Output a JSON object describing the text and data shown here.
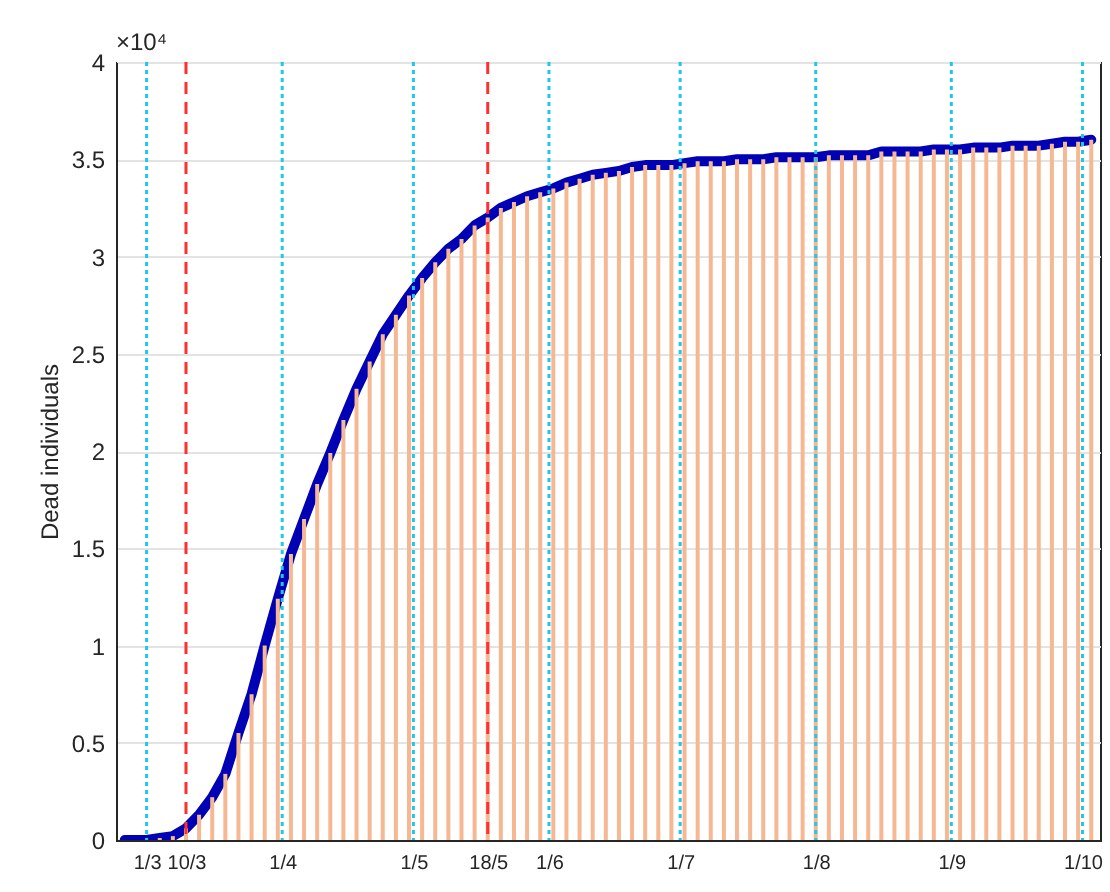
{
  "chart_data": {
    "type": "bar",
    "ylabel": "Dead individuals",
    "annotations": [
      "×10⁴"
    ],
    "x": [
      "--02-24",
      "--02-27",
      "--03-01",
      "--03-04",
      "--03-07",
      "--03-10",
      "--03-13",
      "--03-16",
      "--03-19",
      "--03-22",
      "--03-25",
      "--03-28",
      "--03-31",
      "--04-03",
      "--04-06",
      "--04-09",
      "--04-12",
      "--04-15",
      "--04-18",
      "--04-21",
      "--04-24",
      "--04-27",
      "--04-30",
      "--05-03",
      "--05-06",
      "--05-09",
      "--05-12",
      "--05-15",
      "--05-18",
      "--05-21",
      "--05-24",
      "--05-27",
      "--05-30",
      "--06-02",
      "--06-05",
      "--06-08",
      "--06-11",
      "--06-14",
      "--06-17",
      "--06-20",
      "--06-23",
      "--06-26",
      "--06-29",
      "--07-02",
      "--07-05",
      "--07-08",
      "--07-11",
      "--07-14",
      "--07-17",
      "--07-20",
      "--07-23",
      "--07-26",
      "--07-29",
      "--08-01",
      "--08-04",
      "--08-07",
      "--08-10",
      "--08-13",
      "--08-16",
      "--08-19",
      "--08-22",
      "--08-25",
      "--08-28",
      "--08-31",
      "--09-03",
      "--09-06",
      "--09-09",
      "--09-12",
      "--09-15",
      "--09-18",
      "--09-21",
      "--09-24",
      "--09-27",
      "--09-30",
      "--10-03"
    ],
    "series": [
      {
        "color": "#f6b893",
        "values": [
          0.0,
          0.0,
          0.0,
          0.01,
          0.02,
          0.06,
          0.13,
          0.22,
          0.34,
          0.55,
          0.75,
          1.0,
          1.24,
          1.47,
          1.65,
          1.83,
          1.99,
          2.16,
          2.32,
          2.46,
          2.6,
          2.7,
          2.8,
          2.89,
          2.97,
          3.04,
          3.09,
          3.16,
          3.2,
          3.25,
          3.28,
          3.31,
          3.33,
          3.35,
          3.38,
          3.4,
          3.42,
          3.43,
          3.44,
          3.46,
          3.47,
          3.47,
          3.47,
          3.48,
          3.49,
          3.49,
          3.49,
          3.5,
          3.5,
          3.5,
          3.51,
          3.51,
          3.51,
          3.51,
          3.52,
          3.52,
          3.52,
          3.52,
          3.54,
          3.54,
          3.54,
          3.54,
          3.55,
          3.55,
          3.55,
          3.56,
          3.56,
          3.56,
          3.57,
          3.57,
          3.57,
          3.58,
          3.59,
          3.59,
          3.6
        ]
      },
      {
        "type": "line",
        "color": "#0000b4",
        "values": [
          0.0,
          0.0,
          0.0,
          0.01,
          0.02,
          0.06,
          0.13,
          0.22,
          0.34,
          0.55,
          0.75,
          1.0,
          1.24,
          1.47,
          1.65,
          1.83,
          1.99,
          2.16,
          2.32,
          2.46,
          2.6,
          2.7,
          2.8,
          2.89,
          2.97,
          3.04,
          3.09,
          3.16,
          3.2,
          3.25,
          3.28,
          3.31,
          3.33,
          3.35,
          3.38,
          3.4,
          3.42,
          3.43,
          3.44,
          3.46,
          3.47,
          3.47,
          3.47,
          3.48,
          3.49,
          3.49,
          3.49,
          3.5,
          3.5,
          3.5,
          3.51,
          3.51,
          3.51,
          3.51,
          3.52,
          3.52,
          3.52,
          3.52,
          3.54,
          3.54,
          3.54,
          3.54,
          3.55,
          3.55,
          3.55,
          3.56,
          3.56,
          3.56,
          3.57,
          3.57,
          3.57,
          3.58,
          3.59,
          3.59,
          3.6
        ]
      }
    ],
    "xlim": [
      "--02-22",
      "--10-05"
    ],
    "xticks": [
      {
        "value": "--03-01",
        "label": "1/3"
      },
      {
        "value": "--03-10",
        "label": "10/3"
      },
      {
        "value": "--04-01",
        "label": "1/4"
      },
      {
        "value": "--05-01",
        "label": "1/5"
      },
      {
        "value": "--05-18",
        "label": "18/5"
      },
      {
        "value": "--06-01",
        "label": "1/6"
      },
      {
        "value": "--07-01",
        "label": "1/7"
      },
      {
        "value": "--08-01",
        "label": "1/8"
      },
      {
        "value": "--09-01",
        "label": "1/9"
      },
      {
        "value": "--10-01",
        "label": "1/10"
      }
    ],
    "ylim": [
      0,
      4
    ],
    "yticks": [
      0,
      0.5,
      1,
      1.5,
      2,
      2.5,
      3,
      3.5,
      4
    ],
    "ref_lines": [
      {
        "axis": "x",
        "value": "--03-01",
        "color": "#1ec8e6",
        "line_style": "dotted"
      },
      {
        "axis": "x",
        "value": "--04-01",
        "color": "#1ec8e6",
        "line_style": "dotted"
      },
      {
        "axis": "x",
        "value": "--05-01",
        "color": "#1ec8e6",
        "line_style": "dotted"
      },
      {
        "axis": "x",
        "value": "--06-01",
        "color": "#1ec8e6",
        "line_style": "dotted"
      },
      {
        "axis": "x",
        "value": "--07-01",
        "color": "#1ec8e6",
        "line_style": "dotted"
      },
      {
        "axis": "x",
        "value": "--08-01",
        "color": "#1ec8e6",
        "line_style": "dotted"
      },
      {
        "axis": "x",
        "value": "--09-01",
        "color": "#1ec8e6",
        "line_style": "dotted"
      },
      {
        "axis": "x",
        "value": "--10-01",
        "color": "#1ec8e6",
        "line_style": "dotted"
      },
      {
        "axis": "x",
        "value": "--03-10",
        "color": "#ff3030",
        "line_style": "dashed"
      },
      {
        "axis": "x",
        "value": "--05-18",
        "color": "#ff3030",
        "line_style": "dashed"
      }
    ],
    "grid": "y"
  }
}
